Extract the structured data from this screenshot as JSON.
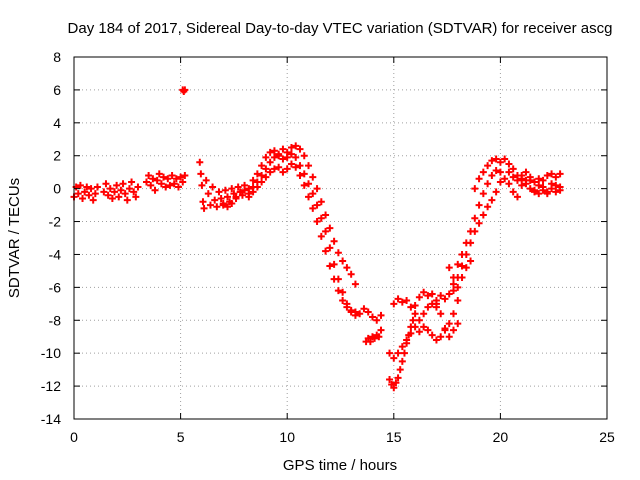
{
  "chart_data": {
    "type": "scatter",
    "title": "Day 184 of 2017, Sidereal Day-to-day VTEC variation (SDTVAR) for receiver ascg",
    "xlabel": "GPS time / hours",
    "ylabel": "SDTVAR / TECUs",
    "xlim": [
      0,
      25
    ],
    "ylim": [
      -14,
      8
    ],
    "xticks": [
      "0",
      "5",
      "10",
      "15",
      "20",
      "25"
    ],
    "yticks": [
      "-14",
      "-12",
      "-10",
      "-8",
      "-6",
      "-4",
      "-2",
      "0",
      "2",
      "4",
      "6",
      "8"
    ],
    "grid": true,
    "marker": "+",
    "series": [
      {
        "name": "SDTVAR",
        "color": "#ff0000",
        "points": [
          [
            0.0,
            -0.5
          ],
          [
            0.1,
            0.1
          ],
          [
            0.2,
            -0.3
          ],
          [
            0.3,
            0.2
          ],
          [
            0.4,
            -0.6
          ],
          [
            0.5,
            -0.2
          ],
          [
            0.6,
            0.1
          ],
          [
            0.7,
            -0.4
          ],
          [
            0.8,
            0.0
          ],
          [
            0.9,
            -0.7
          ],
          [
            1.0,
            -0.3
          ],
          [
            1.1,
            0.1
          ],
          [
            1.4,
            -0.2
          ],
          [
            1.5,
            0.3
          ],
          [
            1.6,
            -0.4
          ],
          [
            1.7,
            0.0
          ],
          [
            1.8,
            -0.6
          ],
          [
            1.9,
            -0.2
          ],
          [
            2.0,
            0.2
          ],
          [
            2.1,
            -0.5
          ],
          [
            2.2,
            -0.1
          ],
          [
            2.3,
            0.3
          ],
          [
            2.4,
            -0.3
          ],
          [
            2.5,
            -0.7
          ],
          [
            2.6,
            0.0
          ],
          [
            2.7,
            0.4
          ],
          [
            2.8,
            -0.2
          ],
          [
            2.9,
            -0.5
          ],
          [
            3.0,
            0.1
          ],
          [
            3.4,
            0.4
          ],
          [
            3.5,
            0.8
          ],
          [
            3.6,
            0.2
          ],
          [
            3.7,
            0.6
          ],
          [
            3.8,
            -0.1
          ],
          [
            3.9,
            0.5
          ],
          [
            4.0,
            0.9
          ],
          [
            4.1,
            0.3
          ],
          [
            4.2,
            0.7
          ],
          [
            4.3,
            0.1
          ],
          [
            4.4,
            0.6
          ],
          [
            4.5,
            0.2
          ],
          [
            4.6,
            0.8
          ],
          [
            4.7,
            0.3
          ],
          [
            4.8,
            0.6
          ],
          [
            4.9,
            0.1
          ],
          [
            5.0,
            0.7
          ],
          [
            5.1,
            0.4
          ],
          [
            5.2,
            0.8
          ],
          [
            5.1,
            6.0
          ],
          [
            5.15,
            5.9
          ],
          [
            5.2,
            6.0
          ],
          [
            5.9,
            1.6
          ],
          [
            5.95,
            0.9
          ],
          [
            6.0,
            0.2
          ],
          [
            6.05,
            -0.8
          ],
          [
            6.1,
            -1.2
          ],
          [
            6.2,
            0.5
          ],
          [
            6.3,
            -0.3
          ],
          [
            6.4,
            -1.0
          ],
          [
            6.5,
            0.1
          ],
          [
            6.6,
            -0.7
          ],
          [
            6.7,
            -1.1
          ],
          [
            6.8,
            -0.2
          ],
          [
            6.9,
            -0.6
          ],
          [
            7.0,
            -0.9
          ],
          [
            7.1,
            -0.1
          ],
          [
            7.2,
            -0.5
          ],
          [
            7.3,
            -0.8
          ],
          [
            7.4,
            0.0
          ],
          [
            7.5,
            -0.3
          ],
          [
            7.6,
            -0.6
          ],
          [
            7.7,
            0.1
          ],
          [
            7.8,
            -0.2
          ],
          [
            7.9,
            -0.4
          ],
          [
            8.0,
            0.2
          ],
          [
            8.2,
            0.0
          ],
          [
            8.4,
            0.5
          ],
          [
            8.6,
            0.9
          ],
          [
            8.8,
            1.4
          ],
          [
            9.0,
            1.9
          ],
          [
            9.2,
            2.2
          ],
          [
            9.4,
            2.3
          ],
          [
            9.6,
            2.1
          ],
          [
            9.8,
            2.4
          ],
          [
            10.0,
            2.2
          ],
          [
            10.2,
            2.5
          ],
          [
            10.4,
            2.6
          ],
          [
            10.6,
            2.4
          ],
          [
            10.8,
            2.0
          ],
          [
            11.0,
            1.4
          ],
          [
            11.2,
            0.7
          ],
          [
            11.4,
            0.0
          ],
          [
            11.6,
            -0.8
          ],
          [
            11.8,
            -1.6
          ],
          [
            12.0,
            -2.4
          ],
          [
            12.2,
            -3.2
          ],
          [
            12.4,
            -3.9
          ],
          [
            12.6,
            -4.4
          ],
          [
            12.8,
            -4.8
          ],
          [
            13.0,
            -5.2
          ],
          [
            13.2,
            -5.8
          ],
          [
            8.2,
            -0.3
          ],
          [
            8.4,
            0.1
          ],
          [
            8.6,
            0.4
          ],
          [
            8.8,
            0.8
          ],
          [
            9.0,
            1.2
          ],
          [
            9.2,
            1.6
          ],
          [
            9.4,
            1.9
          ],
          [
            9.6,
            2.0
          ],
          [
            9.8,
            1.8
          ],
          [
            10.0,
            1.9
          ],
          [
            10.2,
            2.1
          ],
          [
            10.4,
            1.9
          ],
          [
            10.6,
            1.4
          ],
          [
            10.8,
            0.9
          ],
          [
            11.0,
            0.3
          ],
          [
            11.2,
            -0.3
          ],
          [
            11.4,
            -1.0
          ],
          [
            11.6,
            -1.8
          ],
          [
            11.8,
            -2.6
          ],
          [
            12.0,
            -3.6
          ],
          [
            12.2,
            -4.6
          ],
          [
            12.4,
            -5.5
          ],
          [
            12.6,
            -6.3
          ],
          [
            12.8,
            -7.0
          ],
          [
            13.0,
            -7.5
          ],
          [
            13.2,
            -7.7
          ],
          [
            13.4,
            -7.6
          ],
          [
            13.6,
            -7.3
          ],
          [
            13.8,
            -7.5
          ],
          [
            14.0,
            -7.8
          ],
          [
            14.2,
            -8.0
          ],
          [
            14.4,
            -7.7
          ],
          [
            7.0,
            -1.0
          ],
          [
            7.2,
            -1.1
          ],
          [
            7.4,
            -0.9
          ],
          [
            7.6,
            -0.5
          ],
          [
            7.8,
            -0.2
          ],
          [
            8.0,
            -0.1
          ],
          [
            8.2,
            -0.5
          ],
          [
            8.4,
            -0.2
          ],
          [
            8.6,
            0.1
          ],
          [
            8.8,
            0.4
          ],
          [
            9.0,
            0.7
          ],
          [
            9.2,
            1.0
          ],
          [
            9.4,
            1.2
          ],
          [
            9.6,
            1.3
          ],
          [
            9.8,
            1.0
          ],
          [
            10.0,
            1.2
          ],
          [
            10.2,
            1.5
          ],
          [
            10.4,
            1.3
          ],
          [
            10.6,
            0.8
          ],
          [
            10.8,
            0.2
          ],
          [
            11.0,
            -0.5
          ],
          [
            11.2,
            -1.2
          ],
          [
            11.4,
            -2.0
          ],
          [
            11.6,
            -2.9
          ],
          [
            11.8,
            -3.8
          ],
          [
            12.0,
            -4.7
          ],
          [
            12.2,
            -5.5
          ],
          [
            12.4,
            -6.2
          ],
          [
            12.6,
            -6.8
          ],
          [
            12.8,
            -7.2
          ],
          [
            13.0,
            -7.4
          ],
          [
            13.2,
            -7.5
          ],
          [
            13.7,
            -9.3
          ],
          [
            13.8,
            -9.1
          ],
          [
            13.9,
            -9.3
          ],
          [
            14.0,
            -9.0
          ],
          [
            14.1,
            -9.1
          ],
          [
            14.2,
            -8.9
          ],
          [
            14.3,
            -9.0
          ],
          [
            14.4,
            -8.6
          ],
          [
            14.8,
            -10.0
          ],
          [
            15.0,
            -10.3
          ],
          [
            15.2,
            -10.0
          ],
          [
            15.4,
            -9.6
          ],
          [
            15.6,
            -9.2
          ],
          [
            15.8,
            -8.8
          ],
          [
            16.0,
            -8.4
          ],
          [
            16.2,
            -8.0
          ],
          [
            16.4,
            -7.6
          ],
          [
            16.6,
            -7.2
          ],
          [
            16.8,
            -7.0
          ],
          [
            17.0,
            -7.2
          ],
          [
            14.8,
            -11.6
          ],
          [
            14.9,
            -11.9
          ],
          [
            15.0,
            -12.1
          ],
          [
            15.1,
            -11.8
          ],
          [
            15.2,
            -11.5
          ],
          [
            15.3,
            -11.0
          ],
          [
            15.4,
            -10.5
          ],
          [
            15.5,
            -10.0
          ],
          [
            15.6,
            -9.4
          ],
          [
            15.7,
            -8.9
          ],
          [
            15.8,
            -8.4
          ],
          [
            15.9,
            -8.0
          ],
          [
            16.0,
            -7.6
          ],
          [
            15.0,
            -7.0
          ],
          [
            15.2,
            -6.7
          ],
          [
            15.4,
            -6.9
          ],
          [
            15.6,
            -6.8
          ],
          [
            15.8,
            -7.2
          ],
          [
            16.0,
            -7.1
          ],
          [
            16.2,
            -6.6
          ],
          [
            16.4,
            -6.3
          ],
          [
            16.6,
            -6.5
          ],
          [
            16.8,
            -6.4
          ],
          [
            17.0,
            -7.0
          ],
          [
            17.2,
            -7.6
          ],
          [
            17.4,
            -8.5
          ],
          [
            17.6,
            -9.0
          ],
          [
            17.8,
            -8.6
          ],
          [
            18.0,
            -8.2
          ],
          [
            16.2,
            -8.7
          ],
          [
            16.4,
            -8.4
          ],
          [
            16.6,
            -8.6
          ],
          [
            16.8,
            -8.9
          ],
          [
            17.0,
            -9.2
          ],
          [
            17.2,
            -9.0
          ],
          [
            17.4,
            -8.6
          ],
          [
            17.6,
            -8.2
          ],
          [
            17.8,
            -7.6
          ],
          [
            18.0,
            -6.8
          ],
          [
            17.0,
            -6.8
          ],
          [
            17.2,
            -6.5
          ],
          [
            17.4,
            -6.7
          ],
          [
            17.6,
            -6.4
          ],
          [
            17.8,
            -5.4
          ],
          [
            18.0,
            -4.6
          ],
          [
            18.2,
            -4.0
          ],
          [
            18.4,
            -3.3
          ],
          [
            18.6,
            -2.6
          ],
          [
            18.8,
            -1.8
          ],
          [
            19.0,
            -1.0
          ],
          [
            19.2,
            -0.3
          ],
          [
            19.4,
            0.3
          ],
          [
            19.6,
            0.8
          ],
          [
            19.8,
            1.1
          ],
          [
            20.0,
            1.0
          ],
          [
            17.8,
            -6.2
          ],
          [
            18.0,
            -5.4
          ],
          [
            18.2,
            -4.7
          ],
          [
            18.4,
            -4.0
          ],
          [
            18.6,
            -3.3
          ],
          [
            18.8,
            -2.6
          ],
          [
            19.0,
            -2.1
          ],
          [
            19.2,
            -1.6
          ],
          [
            19.4,
            -1.1
          ],
          [
            19.6,
            -0.7
          ],
          [
            19.8,
            -0.2
          ],
          [
            20.0,
            0.4
          ],
          [
            20.2,
            0.6
          ],
          [
            20.4,
            0.3
          ],
          [
            20.6,
            -0.2
          ],
          [
            20.8,
            -0.5
          ],
          [
            17.6,
            -4.8
          ],
          [
            17.8,
            -5.8
          ],
          [
            18.0,
            -6.0
          ],
          [
            18.2,
            -5.4
          ],
          [
            18.4,
            -4.8
          ],
          [
            18.6,
            -4.4
          ],
          [
            18.8,
            0.0
          ],
          [
            19.0,
            0.6
          ],
          [
            19.2,
            1.0
          ],
          [
            19.4,
            1.4
          ],
          [
            19.6,
            1.7
          ],
          [
            19.8,
            1.8
          ],
          [
            20.0,
            1.6
          ],
          [
            20.2,
            1.8
          ],
          [
            20.4,
            1.5
          ],
          [
            20.6,
            1.2
          ],
          [
            20.8,
            0.8
          ],
          [
            21.0,
            0.6
          ],
          [
            21.2,
            0.3
          ],
          [
            21.4,
            0.0
          ],
          [
            21.6,
            -0.2
          ],
          [
            21.8,
            -0.3
          ],
          [
            22.0,
            -0.1
          ],
          [
            22.2,
            -0.3
          ],
          [
            22.4,
            0.0
          ],
          [
            22.6,
            -0.2
          ],
          [
            22.8,
            -0.1
          ],
          [
            20.4,
            1.0
          ],
          [
            20.6,
            0.7
          ],
          [
            20.8,
            0.5
          ],
          [
            21.0,
            0.2
          ],
          [
            21.2,
            0.5
          ],
          [
            21.4,
            0.7
          ],
          [
            21.6,
            0.4
          ],
          [
            21.8,
            0.6
          ],
          [
            22.0,
            0.5
          ],
          [
            22.2,
            0.8
          ],
          [
            22.4,
            0.9
          ],
          [
            22.6,
            0.7
          ],
          [
            22.8,
            0.9
          ],
          [
            21.0,
            0.8
          ],
          [
            21.2,
            1.0
          ],
          [
            21.4,
            0.5
          ],
          [
            21.6,
            -0.1
          ],
          [
            21.8,
            0.2
          ],
          [
            22.0,
            0.1
          ],
          [
            22.2,
            -0.2
          ],
          [
            22.4,
            0.3
          ],
          [
            22.6,
            0.2
          ],
          [
            22.8,
            0.1
          ]
        ]
      }
    ]
  }
}
